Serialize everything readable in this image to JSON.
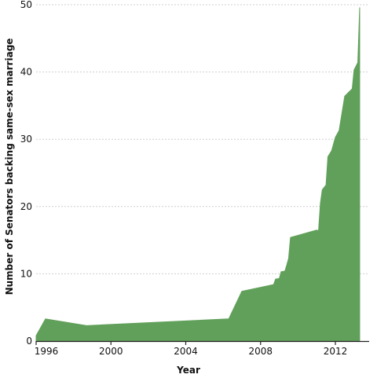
{
  "chart_data": {
    "type": "area",
    "title": "",
    "xlabel": "Year",
    "ylabel": "Number of Senators backing same-sex marriage",
    "xlim": [
      1996,
      2014
    ],
    "ylim": [
      0,
      50
    ],
    "x_ticks": [
      "1996",
      "2000",
      "2004",
      "2008",
      "2012"
    ],
    "y_ticks": [
      "0",
      "10",
      "20",
      "30",
      "40",
      "50"
    ],
    "grid": true,
    "color": "#61a05a",
    "x": [
      1996.0,
      1996.5,
      1998.7,
      2006.3,
      2007.0,
      2008.7,
      2008.8,
      2009.0,
      2009.1,
      2009.3,
      2009.4,
      2009.5,
      2009.6,
      2011.0,
      2011.1,
      2011.2,
      2011.3,
      2011.5,
      2011.6,
      2011.8,
      2012.0,
      2012.2,
      2012.5,
      2012.9,
      2013.0,
      2013.2,
      2013.3
    ],
    "y": [
      0.8,
      3.3,
      2.3,
      3.3,
      7.4,
      8.4,
      9.2,
      9.3,
      10.3,
      10.4,
      11.3,
      12.3,
      15.4,
      16.5,
      16.4,
      20.5,
      22.5,
      23.2,
      27.4,
      28.3,
      30.3,
      31.3,
      36.4,
      37.5,
      40.3,
      41.4,
      49.6
    ]
  }
}
